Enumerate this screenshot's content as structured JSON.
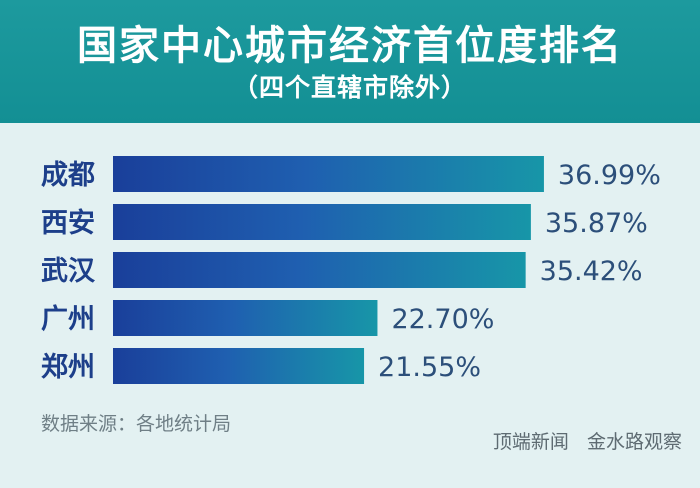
{
  "header": {
    "title": "国家中心城市经济首位度排名",
    "subtitle": "（四个直辖市除外）"
  },
  "chart_data": {
    "type": "bar",
    "orientation": "horizontal",
    "categories": [
      "成都",
      "西安",
      "武汉",
      "广州",
      "郑州"
    ],
    "values": [
      36.99,
      35.87,
      35.42,
      22.7,
      21.55
    ],
    "data_labels": [
      "36.99%",
      "35.87%",
      "35.42%",
      "22.70%",
      "21.55%"
    ],
    "title": "国家中心城市经济首位度排名",
    "subtitle": "（四个直辖市除外）",
    "xlabel": "",
    "ylabel": "",
    "unit": "%",
    "xlim": [
      0,
      40
    ],
    "grid": false,
    "legend": "none",
    "colors": {
      "bar_start": "#1a3f9a",
      "bar_mid": "#1f5fb0",
      "bar_end": "#1796a8",
      "category_label": "#1d3f8a",
      "value_label": "#2c4f7a",
      "header_bg": "#1a969a",
      "page_bg": "#e3f1f2"
    }
  },
  "footer": {
    "source": "数据来源：各地统计局",
    "credit_left": "顶端新闻",
    "credit_right": "金水路观察"
  }
}
